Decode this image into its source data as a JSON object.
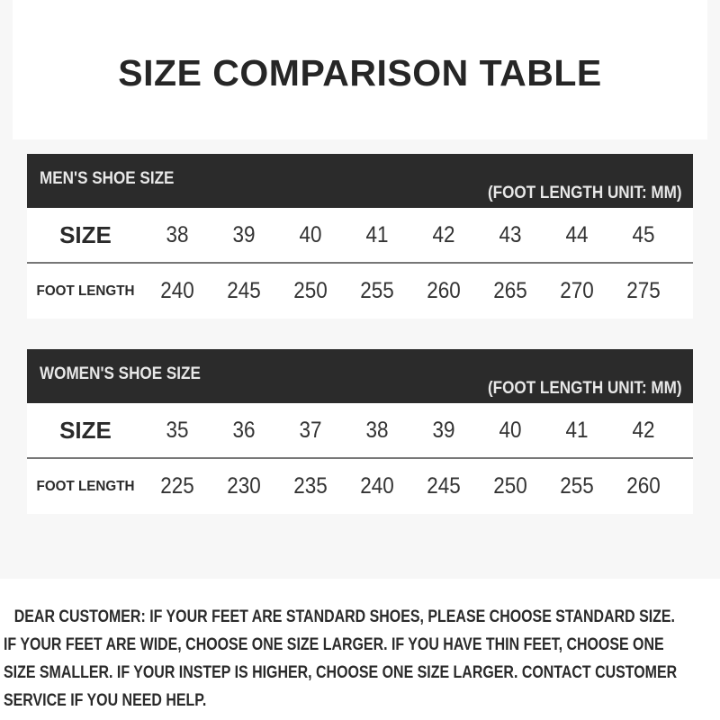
{
  "title": "SIZE COMPARISON TABLE",
  "tables": [
    {
      "name": "MEN'S SHOE SIZE",
      "unit": "(FOOT LENGTH UNIT: MM)",
      "size_label": "SIZE",
      "length_label": "FOOT LENGTH",
      "sizes": [
        "38",
        "39",
        "40",
        "41",
        "42",
        "43",
        "44",
        "45"
      ],
      "lengths": [
        "240",
        "245",
        "250",
        "255",
        "260",
        "265",
        "270",
        "275"
      ]
    },
    {
      "name": "WOMEN'S SHOE SIZE",
      "unit": "(FOOT LENGTH UNIT: MM)",
      "size_label": "SIZE",
      "length_label": "FOOT LENGTH",
      "sizes": [
        "35",
        "36",
        "37",
        "38",
        "39",
        "40",
        "41",
        "42"
      ],
      "lengths": [
        "225",
        "230",
        "235",
        "240",
        "245",
        "250",
        "255",
        "260"
      ]
    }
  ],
  "note_lines": [
    "DEAR CUSTOMER: IF YOUR FEET ARE STANDARD SHOES, PLEASE CHOOSE STANDARD SIZE.",
    "IF YOUR FEET ARE WIDE, CHOOSE ONE SIZE LARGER. IF YOU HAVE THIN FEET, CHOOSE ONE",
    "SIZE SMALLER. IF YOUR INSTEP IS HIGHER, CHOOSE ONE SIZE LARGER. CONTACT CUSTOMER",
    "SERVICE IF YOU NEED HELP."
  ]
}
